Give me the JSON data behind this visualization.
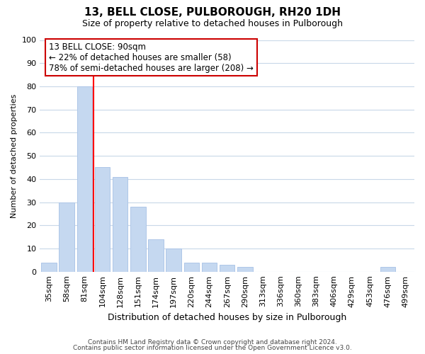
{
  "title": "13, BELL CLOSE, PULBOROUGH, RH20 1DH",
  "subtitle": "Size of property relative to detached houses in Pulborough",
  "xlabel": "Distribution of detached houses by size in Pulborough",
  "ylabel": "Number of detached properties",
  "bar_labels": [
    "35sqm",
    "58sqm",
    "81sqm",
    "104sqm",
    "128sqm",
    "151sqm",
    "174sqm",
    "197sqm",
    "220sqm",
    "244sqm",
    "267sqm",
    "290sqm",
    "313sqm",
    "336sqm",
    "360sqm",
    "383sqm",
    "406sqm",
    "429sqm",
    "453sqm",
    "476sqm",
    "499sqm"
  ],
  "bar_values": [
    4,
    30,
    80,
    45,
    41,
    28,
    14,
    10,
    4,
    4,
    3,
    2,
    0,
    0,
    0,
    0,
    0,
    0,
    0,
    2,
    0
  ],
  "bar_color": "#c5d8f0",
  "bar_edge_color": "#aec6e8",
  "vline_x_index": 2,
  "vline_color": "#ff0000",
  "ylim": [
    0,
    100
  ],
  "yticks": [
    0,
    10,
    20,
    30,
    40,
    50,
    60,
    70,
    80,
    90,
    100
  ],
  "annotation_line1": "13 BELL CLOSE: 90sqm",
  "annotation_line2": "← 22% of detached houses are smaller (58)",
  "annotation_line3": "78% of semi-detached houses are larger (208) →",
  "annotation_box_color": "#ffffff",
  "annotation_box_edge": "#cc0000",
  "footer_line1": "Contains HM Land Registry data © Crown copyright and database right 2024.",
  "footer_line2": "Contains public sector information licensed under the Open Government Licence v3.0.",
  "background_color": "#ffffff",
  "grid_color": "#c8d8e8",
  "title_fontsize": 11,
  "subtitle_fontsize": 9,
  "xlabel_fontsize": 9,
  "ylabel_fontsize": 8,
  "tick_fontsize": 8,
  "annotation_fontsize": 8.5,
  "footer_fontsize": 6.5
}
